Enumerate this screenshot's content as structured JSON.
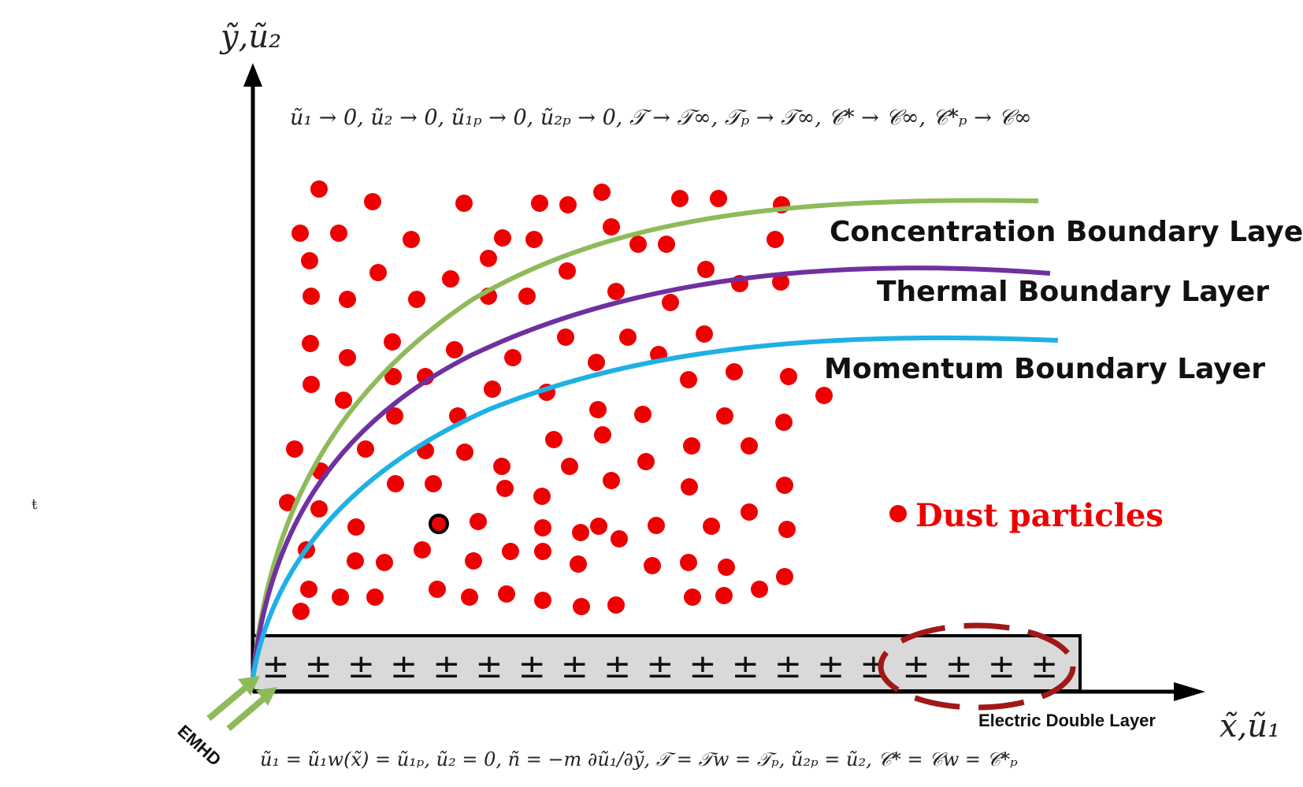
{
  "axes": {
    "y_label": "ỹ,ũ₂",
    "x_label": "x̃,ũ₁"
  },
  "top_condition": "ũ₁ → 0, ũ₂ → 0, ũ₁ₚ → 0, ũ₂ₚ → 0, 𝒯 → 𝒯∞, 𝒯ₚ → 𝒯∞, 𝒞* → 𝒞∞, 𝒞*ₚ → 𝒞∞",
  "bottom_condition": "ũ₁ = ũ₁w(x̃) = ũ₁ₚ, ũ₂ = 0, ñ = −m ∂ũ₁/∂ỹ, 𝒯 = 𝒯w = 𝒯ₚ, ũ₂ₚ = ũ₂, 𝒞* = 𝒞w = 𝒞*ₚ",
  "layers": {
    "concentration": {
      "label": "Concentration Boundary Layer",
      "color": "#8fba5a"
    },
    "thermal": {
      "label": "Thermal Boundary Layer",
      "color": "#7030a0"
    },
    "momentum": {
      "label": "Momentum Boundary Layer",
      "color": "#1fb0e6"
    }
  },
  "legend": {
    "dust_label": "Dust particles",
    "dust_color": "#ee0000"
  },
  "plate": {
    "charge_symbol": "±",
    "label": "Electric Double Layer",
    "highlight_color": "#a01818"
  },
  "emhd_label": "EMHD",
  "stray_mark": "ŧ"
}
